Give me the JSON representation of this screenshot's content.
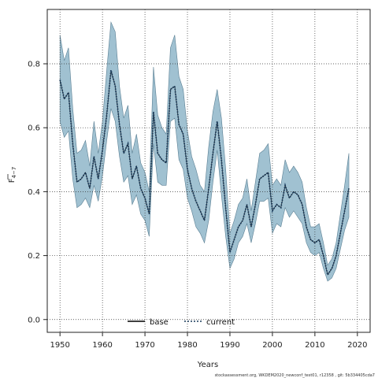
{
  "chart_data": {
    "type": "line",
    "title": "",
    "xlabel": "Years",
    "ylabel_main": "F",
    "ylabel_sub": "4−7",
    "xlim": [
      1947,
      2023
    ],
    "ylim": [
      -0.04,
      0.97
    ],
    "xticks": [
      1950,
      1960,
      1970,
      1980,
      1990,
      2000,
      2010,
      2020
    ],
    "yticks": [
      0.0,
      0.2,
      0.4,
      0.6,
      0.8
    ],
    "ytick_labels": [
      "0.0",
      "0.2",
      "0.4",
      "0.6",
      "0.8"
    ],
    "grid": true,
    "legend_position": "bottom-center",
    "colors": {
      "band": "#8fb6c9",
      "band_edge": "#5a7f93",
      "current": "#1a3b5c",
      "base": "#000000",
      "grid": "#333333"
    },
    "x": [
      1950,
      1951,
      1952,
      1953,
      1954,
      1955,
      1956,
      1957,
      1958,
      1959,
      1960,
      1961,
      1962,
      1963,
      1964,
      1965,
      1966,
      1967,
      1968,
      1969,
      1970,
      1971,
      1972,
      1973,
      1974,
      1975,
      1976,
      1977,
      1978,
      1979,
      1980,
      1981,
      1982,
      1983,
      1984,
      1985,
      1986,
      1987,
      1988,
      1989,
      1990,
      1991,
      1992,
      1993,
      1994,
      1995,
      1996,
      1997,
      1998,
      1999,
      2000,
      2001,
      2002,
      2003,
      2004,
      2005,
      2006,
      2007,
      2008,
      2009,
      2010,
      2011,
      2012,
      2013,
      2014,
      2015,
      2016,
      2017,
      2018
    ],
    "series": [
      {
        "name": "base",
        "style": "solid",
        "values": [
          0.75,
          0.69,
          0.71,
          0.55,
          0.43,
          0.44,
          0.46,
          0.41,
          0.51,
          0.44,
          0.53,
          0.64,
          0.78,
          0.73,
          0.61,
          0.52,
          0.55,
          0.44,
          0.48,
          0.41,
          0.38,
          0.33,
          0.65,
          0.52,
          0.5,
          0.49,
          0.72,
          0.73,
          0.61,
          0.58,
          0.47,
          0.41,
          0.37,
          0.34,
          0.31,
          0.41,
          0.52,
          0.62,
          0.5,
          0.35,
          0.21,
          0.25,
          0.29,
          0.31,
          0.36,
          0.29,
          0.36,
          0.44,
          0.45,
          0.46,
          0.34,
          0.36,
          0.35,
          0.42,
          0.38,
          0.4,
          0.39,
          0.36,
          0.29,
          0.25,
          0.24,
          0.25,
          0.2,
          0.14,
          0.16,
          0.2,
          0.27,
          0.34,
          0.41
        ]
      },
      {
        "name": "current",
        "style": "dotted",
        "values": [
          0.75,
          0.69,
          0.71,
          0.55,
          0.43,
          0.44,
          0.46,
          0.41,
          0.51,
          0.44,
          0.53,
          0.64,
          0.78,
          0.73,
          0.61,
          0.52,
          0.55,
          0.44,
          0.48,
          0.41,
          0.38,
          0.33,
          0.65,
          0.52,
          0.5,
          0.49,
          0.72,
          0.73,
          0.61,
          0.58,
          0.47,
          0.41,
          0.37,
          0.34,
          0.31,
          0.41,
          0.52,
          0.62,
          0.5,
          0.35,
          0.21,
          0.25,
          0.29,
          0.31,
          0.36,
          0.29,
          0.36,
          0.44,
          0.45,
          0.46,
          0.34,
          0.36,
          0.35,
          0.42,
          0.38,
          0.4,
          0.39,
          0.36,
          0.29,
          0.25,
          0.24,
          0.25,
          0.2,
          0.14,
          0.16,
          0.2,
          0.27,
          0.34,
          0.41
        ]
      }
    ],
    "band_lower": [
      0.62,
      0.57,
      0.59,
      0.44,
      0.35,
      0.36,
      0.38,
      0.35,
      0.42,
      0.37,
      0.45,
      0.56,
      0.66,
      0.62,
      0.51,
      0.43,
      0.45,
      0.36,
      0.39,
      0.33,
      0.31,
      0.26,
      0.55,
      0.43,
      0.42,
      0.42,
      0.62,
      0.63,
      0.5,
      0.47,
      0.38,
      0.34,
      0.29,
      0.27,
      0.24,
      0.31,
      0.43,
      0.53,
      0.39,
      0.26,
      0.16,
      0.19,
      0.24,
      0.26,
      0.3,
      0.24,
      0.3,
      0.37,
      0.37,
      0.38,
      0.27,
      0.3,
      0.29,
      0.35,
      0.32,
      0.34,
      0.32,
      0.3,
      0.24,
      0.21,
      0.2,
      0.21,
      0.16,
      0.12,
      0.13,
      0.16,
      0.22,
      0.28,
      0.32
    ],
    "band_upper": [
      0.89,
      0.81,
      0.85,
      0.66,
      0.52,
      0.53,
      0.56,
      0.48,
      0.62,
      0.52,
      0.62,
      0.78,
      0.93,
      0.9,
      0.73,
      0.63,
      0.67,
      0.52,
      0.58,
      0.49,
      0.46,
      0.4,
      0.79,
      0.64,
      0.6,
      0.58,
      0.85,
      0.89,
      0.76,
      0.72,
      0.59,
      0.51,
      0.47,
      0.42,
      0.4,
      0.54,
      0.65,
      0.72,
      0.63,
      0.47,
      0.27,
      0.31,
      0.36,
      0.38,
      0.44,
      0.34,
      0.43,
      0.52,
      0.53,
      0.55,
      0.42,
      0.44,
      0.42,
      0.5,
      0.46,
      0.48,
      0.46,
      0.43,
      0.35,
      0.29,
      0.29,
      0.3,
      0.24,
      0.17,
      0.19,
      0.24,
      0.33,
      0.42,
      0.52
    ],
    "footnote": "stockassessment.org, WKDEM2020_newconf_test01, r12358 , git: 5b334405cda7"
  }
}
